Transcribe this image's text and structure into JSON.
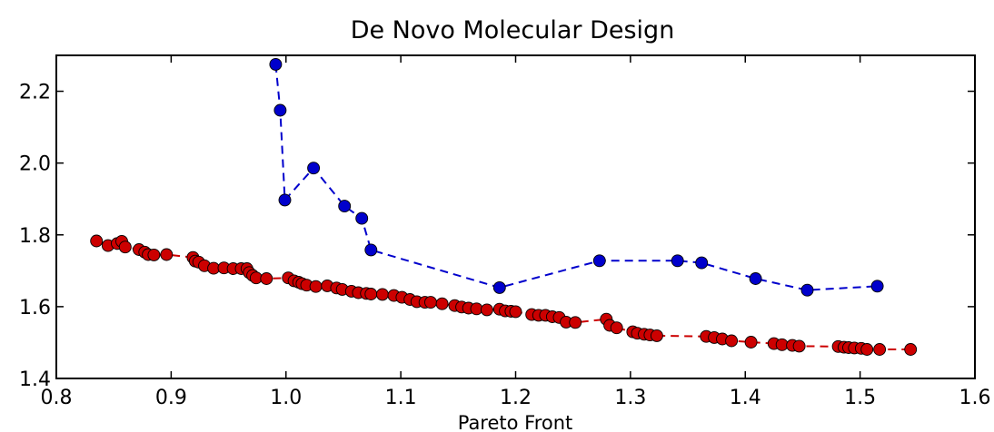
{
  "chart_data": {
    "type": "scatter",
    "title": "De Novo Molecular Design",
    "xlabel": "Pareto Front",
    "ylabel": "",
    "xlim": [
      0.8,
      1.6
    ],
    "ylim": [
      1.4,
      2.3
    ],
    "x_ticks": [
      "0.8",
      "0.9",
      "1.0",
      "1.1",
      "1.2",
      "1.3",
      "1.4",
      "1.5",
      "1.6"
    ],
    "y_ticks": [
      "1.4",
      "1.6",
      "1.8",
      "2.0",
      "2.2"
    ],
    "grid": false,
    "legend": "none",
    "series": [
      {
        "color": "#0000cc",
        "line_style": "dashed",
        "points": [
          [
            0.991,
            2.275
          ],
          [
            0.995,
            2.147
          ],
          [
            0.999,
            1.897
          ],
          [
            1.024,
            1.986
          ],
          [
            1.051,
            1.88
          ],
          [
            1.066,
            1.846
          ],
          [
            1.074,
            1.758
          ],
          [
            1.186,
            1.653
          ],
          [
            1.273,
            1.728
          ],
          [
            1.341,
            1.728
          ],
          [
            1.362,
            1.722
          ],
          [
            1.409,
            1.678
          ],
          [
            1.454,
            1.646
          ],
          [
            1.515,
            1.657
          ]
        ]
      },
      {
        "color": "#cc0000",
        "line_style": "dashed",
        "points": [
          [
            0.835,
            1.783
          ],
          [
            0.845,
            1.77
          ],
          [
            0.853,
            1.776
          ],
          [
            0.857,
            1.782
          ],
          [
            0.86,
            1.766
          ],
          [
            0.872,
            1.759
          ],
          [
            0.877,
            1.752
          ],
          [
            0.88,
            1.745
          ],
          [
            0.885,
            1.744
          ],
          [
            0.896,
            1.745
          ],
          [
            0.919,
            1.737
          ],
          [
            0.921,
            1.727
          ],
          [
            0.924,
            1.724
          ],
          [
            0.929,
            1.714
          ],
          [
            0.937,
            1.707
          ],
          [
            0.946,
            1.708
          ],
          [
            0.954,
            1.706
          ],
          [
            0.961,
            1.706
          ],
          [
            0.966,
            1.706
          ],
          [
            0.968,
            1.695
          ],
          [
            0.971,
            1.687
          ],
          [
            0.974,
            1.68
          ],
          [
            0.983,
            1.678
          ],
          [
            1.002,
            1.68
          ],
          [
            1.007,
            1.672
          ],
          [
            1.011,
            1.668
          ],
          [
            1.014,
            1.664
          ],
          [
            1.018,
            1.66
          ],
          [
            1.026,
            1.656
          ],
          [
            1.036,
            1.658
          ],
          [
            1.044,
            1.652
          ],
          [
            1.049,
            1.648
          ],
          [
            1.057,
            1.643
          ],
          [
            1.063,
            1.639
          ],
          [
            1.07,
            1.637
          ],
          [
            1.074,
            1.635
          ],
          [
            1.084,
            1.634
          ],
          [
            1.094,
            1.631
          ],
          [
            1.101,
            1.626
          ],
          [
            1.108,
            1.62
          ],
          [
            1.114,
            1.614
          ],
          [
            1.121,
            1.612
          ],
          [
            1.126,
            1.612
          ],
          [
            1.136,
            1.608
          ],
          [
            1.147,
            1.603
          ],
          [
            1.153,
            1.599
          ],
          [
            1.159,
            1.596
          ],
          [
            1.166,
            1.594
          ],
          [
            1.175,
            1.591
          ],
          [
            1.186,
            1.593
          ],
          [
            1.191,
            1.588
          ],
          [
            1.196,
            1.587
          ],
          [
            1.2,
            1.586
          ],
          [
            1.214,
            1.578
          ],
          [
            1.22,
            1.576
          ],
          [
            1.226,
            1.576
          ],
          [
            1.232,
            1.572
          ],
          [
            1.238,
            1.57
          ],
          [
            1.244,
            1.557
          ],
          [
            1.252,
            1.556
          ],
          [
            1.279,
            1.565
          ],
          [
            1.282,
            1.548
          ],
          [
            1.288,
            1.541
          ],
          [
            1.302,
            1.53
          ],
          [
            1.306,
            1.526
          ],
          [
            1.312,
            1.523
          ],
          [
            1.317,
            1.521
          ],
          [
            1.323,
            1.519
          ],
          [
            1.366,
            1.517
          ],
          [
            1.373,
            1.514
          ],
          [
            1.38,
            1.51
          ],
          [
            1.388,
            1.505
          ],
          [
            1.405,
            1.501
          ],
          [
            1.425,
            1.497
          ],
          [
            1.432,
            1.494
          ],
          [
            1.441,
            1.492
          ],
          [
            1.447,
            1.49
          ],
          [
            1.481,
            1.489
          ],
          [
            1.486,
            1.487
          ],
          [
            1.49,
            1.486
          ],
          [
            1.495,
            1.485
          ],
          [
            1.501,
            1.484
          ],
          [
            1.506,
            1.481
          ],
          [
            1.517,
            1.481
          ],
          [
            1.544,
            1.481
          ]
        ]
      }
    ]
  }
}
